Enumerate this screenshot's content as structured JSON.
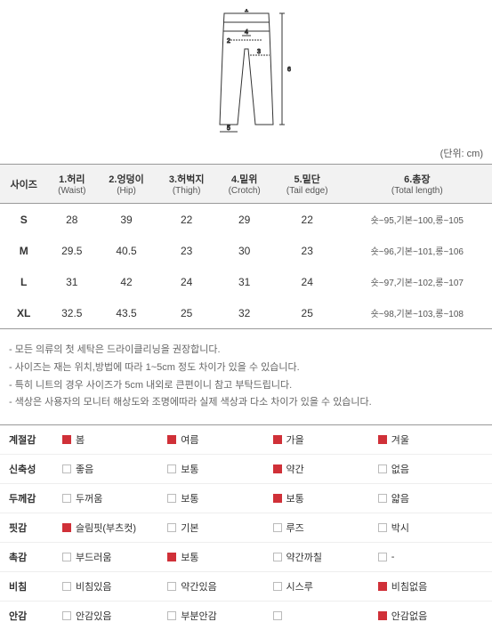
{
  "unit_label": "(단위: cm)",
  "size_table": {
    "columns": [
      {
        "main": "사이즈",
        "sub": ""
      },
      {
        "main": "1.허리",
        "sub": "(Waist)"
      },
      {
        "main": "2.엉덩이",
        "sub": "(Hip)"
      },
      {
        "main": "3.허벅지",
        "sub": "(Thigh)"
      },
      {
        "main": "4.밑위",
        "sub": "(Crotch)"
      },
      {
        "main": "5.밑단",
        "sub": "(Tail edge)"
      },
      {
        "main": "6.총장",
        "sub": "(Total length)"
      }
    ],
    "rows": [
      {
        "size": "S",
        "waist": "28",
        "hip": "39",
        "thigh": "22",
        "crotch": "29",
        "tail": "22",
        "total": "숏~95,기본~100,롱~105"
      },
      {
        "size": "M",
        "waist": "29.5",
        "hip": "40.5",
        "thigh": "23",
        "crotch": "30",
        "tail": "23",
        "total": "숏~96,기본~101,롱~106"
      },
      {
        "size": "L",
        "waist": "31",
        "hip": "42",
        "thigh": "24",
        "crotch": "31",
        "tail": "24",
        "total": "숏~97,기본~102,롱~107"
      },
      {
        "size": "XL",
        "waist": "32.5",
        "hip": "43.5",
        "thigh": "25",
        "crotch": "32",
        "tail": "25",
        "total": "숏~98,기본~103,롱~108"
      }
    ]
  },
  "notes": {
    "n1": "모든 의류의 첫 세탁은 드라이클리닝을 권장합니다.",
    "n2": "사이즈는 재는 위치,방법에 따라 1~5cm 정도 차이가 있을 수 있습니다.",
    "n3": "특히 니트의 경우 사이즈가 5cm 내외로 큰편이니 참고 부탁드립니다.",
    "n4": "색상은 사용자의 모니터 해상도와 조명에따라 실제 색상과 다소 차이가 있을 수 있습니다."
  },
  "attrs": {
    "r1": {
      "label": "계절감",
      "opts": [
        {
          "text": "봄",
          "checked": true
        },
        {
          "text": "여름",
          "checked": true
        },
        {
          "text": "가을",
          "checked": true
        },
        {
          "text": "겨울",
          "checked": true
        }
      ]
    },
    "r2": {
      "label": "신축성",
      "opts": [
        {
          "text": "좋음",
          "checked": false
        },
        {
          "text": "보통",
          "checked": false
        },
        {
          "text": "약간",
          "checked": true
        },
        {
          "text": "없음",
          "checked": false
        }
      ]
    },
    "r3": {
      "label": "두께감",
      "opts": [
        {
          "text": "두꺼움",
          "checked": false
        },
        {
          "text": "보통",
          "checked": false
        },
        {
          "text": "보통",
          "checked": true
        },
        {
          "text": "얇음",
          "checked": false
        }
      ]
    },
    "r4": {
      "label": "핏감",
      "opts": [
        {
          "text": "슬림핏(부츠컷)",
          "checked": true
        },
        {
          "text": "기본",
          "checked": false
        },
        {
          "text": "루즈",
          "checked": false
        },
        {
          "text": "박시",
          "checked": false
        }
      ]
    },
    "r5": {
      "label": "촉감",
      "opts": [
        {
          "text": "부드러움",
          "checked": false
        },
        {
          "text": "보통",
          "checked": true
        },
        {
          "text": "약간까칠",
          "checked": false
        },
        {
          "text": "-",
          "checked": false
        }
      ]
    },
    "r6": {
      "label": "비침",
      "opts": [
        {
          "text": "비침있음",
          "checked": false
        },
        {
          "text": "약간있음",
          "checked": false
        },
        {
          "text": "시스루",
          "checked": false
        },
        {
          "text": "비침없음",
          "checked": true
        }
      ]
    },
    "r7": {
      "label": "안감",
      "opts": [
        {
          "text": "안감있음",
          "checked": false
        },
        {
          "text": "부분안감",
          "checked": false
        },
        {
          "text": "",
          "checked": false
        },
        {
          "text": "안감없음",
          "checked": true
        }
      ]
    }
  },
  "diagram": {
    "stroke": "#333",
    "fill": "#fff",
    "label_color": "#333"
  }
}
